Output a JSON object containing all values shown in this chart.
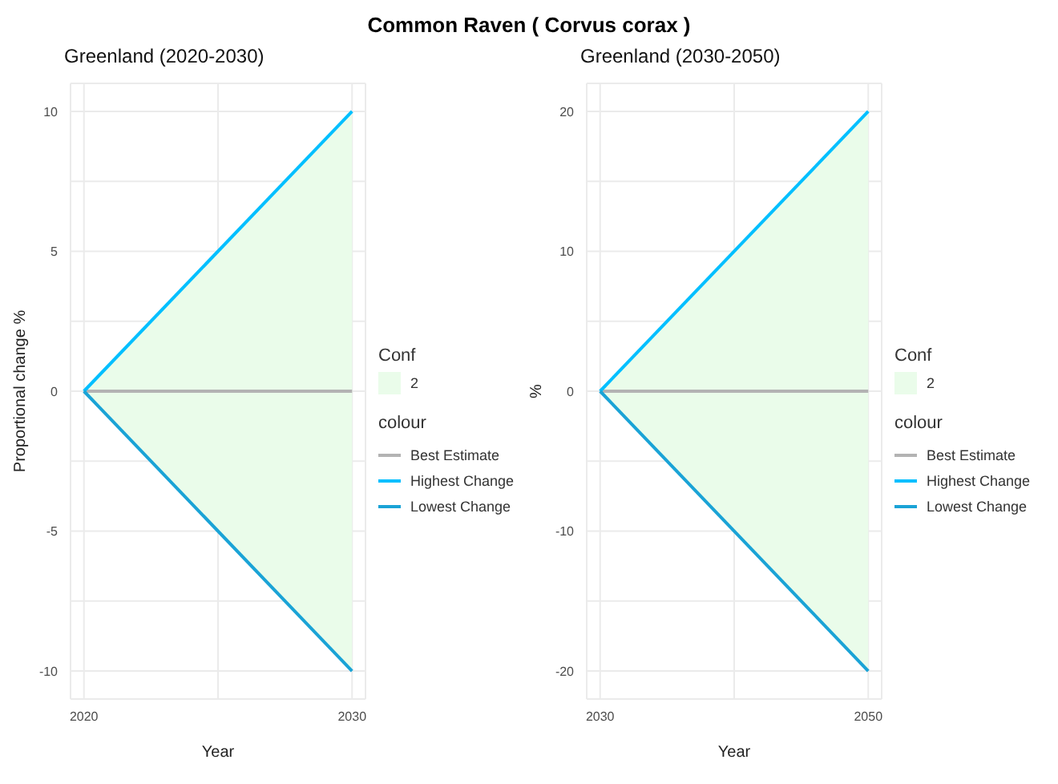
{
  "chart_data": [
    {
      "type": "line",
      "title": "Common Raven ( Corvus corax )",
      "subtitle": "Greenland (2020-2030)",
      "xlabel": "Year",
      "ylabel": "Proportional change %",
      "legend_title": "colour",
      "annotations": [
        "Conf",
        "2"
      ],
      "legend": "right",
      "grid": true,
      "x": [
        2020,
        2030
      ],
      "xlim": [
        2019.5,
        2030.5
      ],
      "xticks": [
        2020,
        {
          "value": 2025,
          "label": null
        },
        2030
      ],
      "ylim": [
        -11,
        11
      ],
      "yticks": [
        -10,
        {
          "value": -7.5,
          "label": null
        },
        -5,
        {
          "value": -2.5,
          "label": null
        },
        0,
        {
          "value": 2.5,
          "label": null
        },
        5,
        {
          "value": 7.5,
          "label": null
        },
        10
      ],
      "series": [
        {
          "name": "Best Estimate",
          "color": "#b3b3b3",
          "values": [
            0,
            0
          ],
          "lower": [
            0,
            -10
          ],
          "upper": [
            0,
            10
          ]
        },
        {
          "name": "Highest Change",
          "color": "#00bfff",
          "values": [
            0,
            10
          ]
        },
        {
          "name": "Lowest Change",
          "color": "#1aa3d6",
          "values": [
            0,
            -10
          ]
        }
      ]
    },
    {
      "type": "line",
      "subtitle": "Greenland (2030-2050)",
      "xlabel": "Year",
      "ylabel": "%",
      "legend_title": "colour",
      "annotations": [
        "Conf",
        "2"
      ],
      "legend": "right",
      "grid": true,
      "x": [
        2030,
        2050
      ],
      "xlim": [
        2029,
        2051
      ],
      "xticks": [
        2030,
        {
          "value": 2040,
          "label": null
        },
        2050
      ],
      "ylim": [
        -22,
        22
      ],
      "yticks": [
        -20,
        {
          "value": -15,
          "label": null
        },
        -10,
        {
          "value": -5,
          "label": null
        },
        0,
        {
          "value": 5,
          "label": null
        },
        10,
        {
          "value": 15,
          "label": null
        },
        20
      ],
      "series": [
        {
          "name": "Best Estimate",
          "color": "#b3b3b3",
          "values": [
            0,
            0
          ],
          "lower": [
            0,
            -20
          ],
          "upper": [
            0,
            20
          ]
        },
        {
          "name": "Highest Change",
          "color": "#00bfff",
          "values": [
            0,
            20
          ]
        },
        {
          "name": "Lowest Change",
          "color": "#1aa3d6",
          "values": [
            0,
            -20
          ]
        }
      ]
    }
  ]
}
